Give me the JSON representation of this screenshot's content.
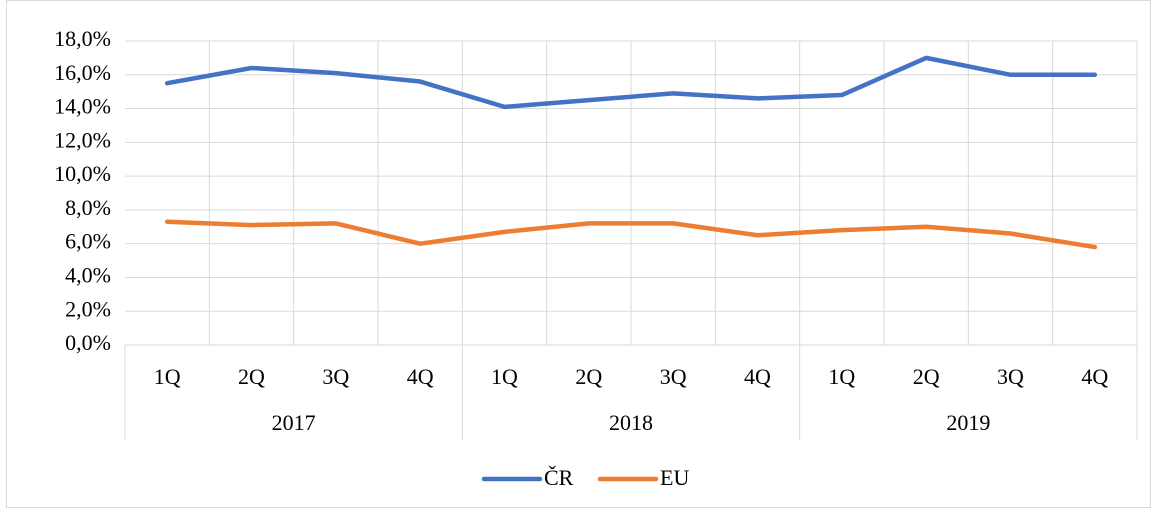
{
  "chart_data": {
    "type": "line",
    "categories": [
      "1Q",
      "2Q",
      "3Q",
      "4Q",
      "1Q",
      "2Q",
      "3Q",
      "4Q",
      "1Q",
      "2Q",
      "3Q",
      "4Q"
    ],
    "groups": [
      "2017",
      "2018",
      "2019"
    ],
    "series": [
      {
        "name": "ČR",
        "color": "#4472c4",
        "values": [
          15.5,
          16.4,
          16.1,
          15.6,
          14.1,
          14.5,
          14.9,
          14.6,
          14.8,
          17.0,
          16.0,
          16.0
        ]
      },
      {
        "name": "EU",
        "color": "#ed7d31",
        "values": [
          7.3,
          7.1,
          7.2,
          6.0,
          6.7,
          7.2,
          7.2,
          6.5,
          6.8,
          7.0,
          6.6,
          5.8
        ]
      }
    ],
    "ylim": [
      0,
      18
    ],
    "yticks": [
      {
        "value": 0,
        "label": "0,0%"
      },
      {
        "value": 2,
        "label": "2,0%"
      },
      {
        "value": 4,
        "label": "4,0%"
      },
      {
        "value": 6,
        "label": "6,0%"
      },
      {
        "value": 8,
        "label": "8,0%"
      },
      {
        "value": 10,
        "label": "10,0%"
      },
      {
        "value": 12,
        "label": "12,0%"
      },
      {
        "value": 14,
        "label": "14,0%"
      },
      {
        "value": 16,
        "label": "16,0%"
      },
      {
        "value": 18,
        "label": "18,0%"
      }
    ],
    "grid": true,
    "legend": "bottom"
  }
}
